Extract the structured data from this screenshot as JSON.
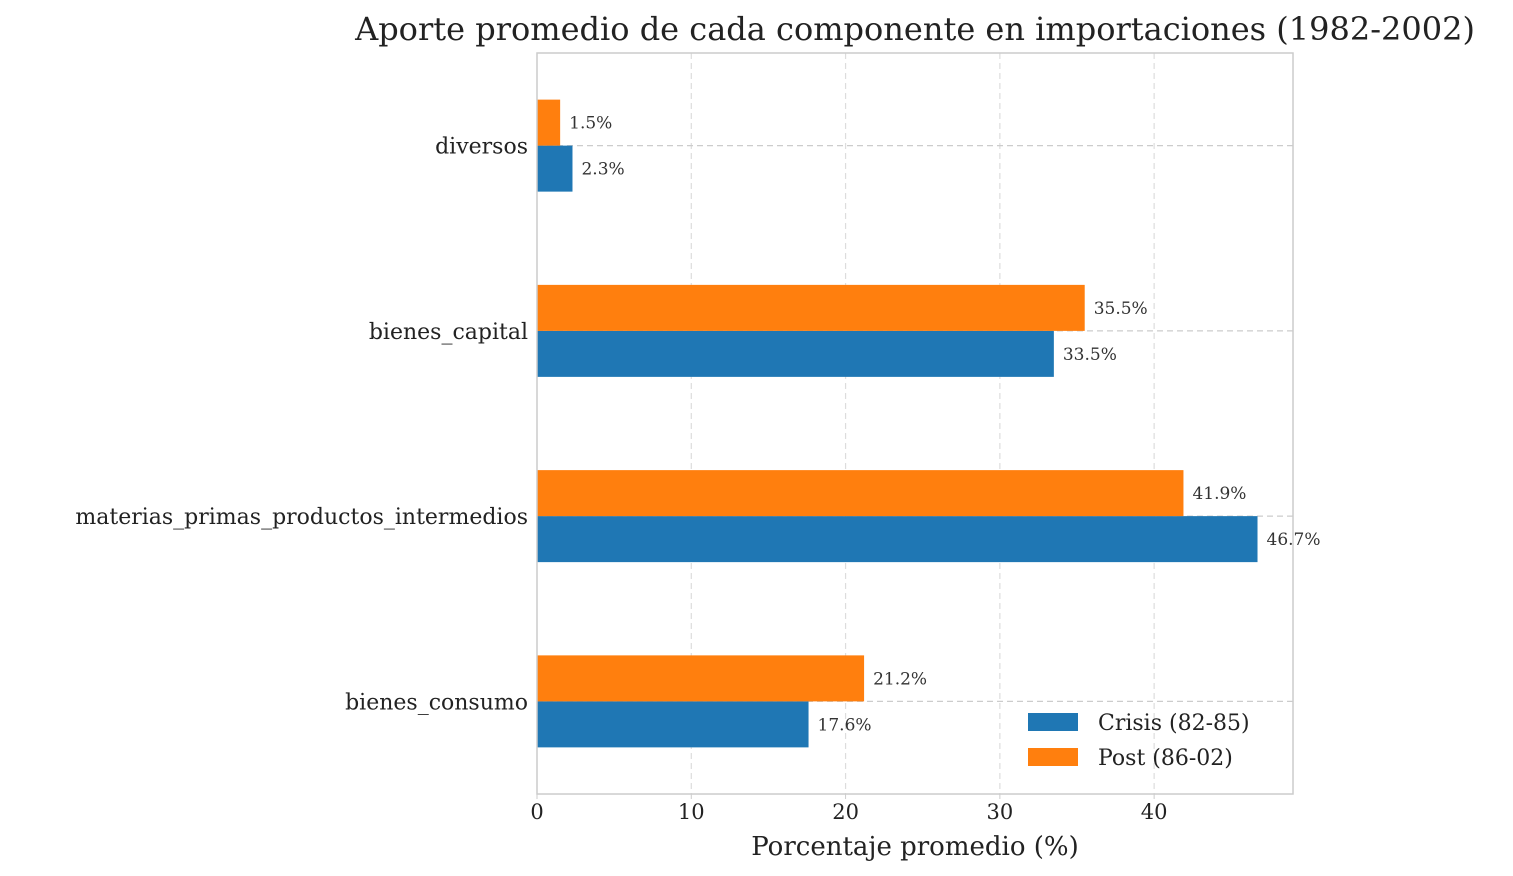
{
  "chart_data": {
    "type": "bar",
    "orientation": "horizontal",
    "title": "Aporte promedio de cada componente en importaciones (1982-2002)",
    "xlabel": "Porcentaje promedio (%)",
    "ylabel": "",
    "xlim": [
      0,
      49
    ],
    "xticks": [
      0,
      10,
      20,
      30,
      40
    ],
    "grid": true,
    "legend_position": "lower-right",
    "categories": [
      "diversos",
      "bienes_capital",
      "materias_primas_productos_intermedios",
      "bienes_consumo"
    ],
    "series": [
      {
        "name": "Crisis (82-85)",
        "color": "#1f77b4",
        "values": [
          2.3,
          33.5,
          46.7,
          17.6
        ],
        "labels": [
          "2.3%",
          "33.5%",
          "46.7%",
          "17.6%"
        ]
      },
      {
        "name": "Post (86-02)",
        "color": "#ff7f0e",
        "values": [
          1.5,
          35.5,
          41.9,
          21.2
        ],
        "labels": [
          "1.5%",
          "35.5%",
          "41.9%",
          "21.2%"
        ]
      }
    ]
  }
}
